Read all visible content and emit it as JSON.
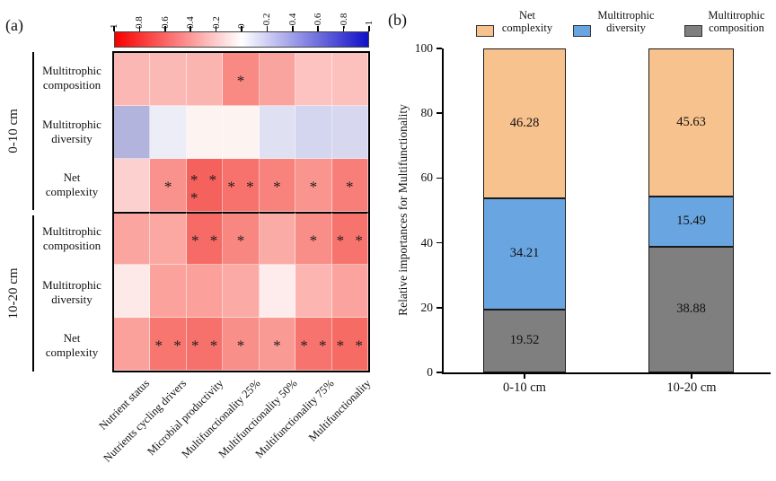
{
  "figure": {
    "panel_a_label": "(a)",
    "panel_b_label": "(b)"
  },
  "panel_a": {
    "row_groups": [
      {
        "label": "0-10 cm",
        "rows": [
          [
            "Multitrophic",
            "composition"
          ],
          [
            "Multitrophic",
            "diversity"
          ],
          [
            "Net",
            "complexity"
          ]
        ]
      },
      {
        "label": "10-20 cm",
        "rows": [
          [
            "Multitrophic",
            "composition"
          ],
          [
            "Multitrophic",
            "diversity"
          ],
          [
            "Net",
            "complexity"
          ]
        ]
      }
    ]
  },
  "panel_b": {
    "ylabel": "Relative importances for Multifunctionality",
    "legend": [
      {
        "label_lines": [
          "Net",
          "complexity"
        ],
        "color": "#f8c28e"
      },
      {
        "label_lines": [
          "Multitrophic",
          "diversity"
        ],
        "color": "#69a6e1"
      },
      {
        "label_lines": [
          "Multitrophic",
          "composition"
        ],
        "color": "#7f7f7f"
      }
    ]
  },
  "chart_data": [
    {
      "type": "heatmap",
      "title": "",
      "rows": [
        "Multitrophic composition (0-10 cm)",
        "Multitrophic diversity (0-10 cm)",
        "Net complexity (0-10 cm)",
        "Multitrophic composition (10-20 cm)",
        "Multitrophic diversity (10-20 cm)",
        "Net complexity (10-20 cm)"
      ],
      "columns": [
        "Nutrient status",
        "Nutrients cycling drivers",
        "Microbial productivity",
        "Multifunctionality 25%",
        "Multifunctionality 50%",
        "Multifunctionality 75%",
        "Multifunctionality"
      ],
      "values_note": "correlation values estimated from red-white-blue color scale",
      "values": [
        [
          0.28,
          0.27,
          0.29,
          0.46,
          0.36,
          0.24,
          0.25
        ],
        [
          -0.3,
          -0.07,
          0.04,
          0.04,
          -0.12,
          -0.17,
          -0.16
        ],
        [
          0.18,
          0.43,
          0.62,
          0.55,
          0.49,
          0.42,
          0.5
        ],
        [
          0.35,
          0.34,
          0.58,
          0.47,
          0.33,
          0.45,
          0.55
        ],
        [
          0.09,
          0.36,
          0.37,
          0.33,
          0.07,
          0.29,
          0.36
        ],
        [
          0.37,
          0.54,
          0.56,
          0.44,
          0.4,
          0.55,
          0.58
        ]
      ],
      "significance": [
        [
          "",
          "",
          "",
          "*",
          "",
          "",
          ""
        ],
        [
          "",
          "",
          "",
          "",
          "",
          "",
          ""
        ],
        [
          "",
          "*",
          "***",
          "**",
          "*",
          "*",
          "*"
        ],
        [
          "",
          "",
          "**",
          "*",
          "",
          "*",
          "**"
        ],
        [
          "",
          "",
          "",
          "",
          "",
          "",
          ""
        ],
        [
          "",
          "**",
          "**",
          "*",
          "*",
          "**",
          "**"
        ]
      ],
      "cell_colors": [
        [
          "#fbb7b4",
          "#fbb9b5",
          "#fab5b1",
          "#f98983",
          "#faa49f",
          "#fcc3c0",
          "#fcc0bd"
        ],
        [
          "#b3b4de",
          "#ededf8",
          "#fdf3f1",
          "#fdf4f2",
          "#dfe0f2",
          "#d4d5ee",
          "#d7d8ef"
        ],
        [
          "#fcd0ce",
          "#f9918c",
          "#f5625d",
          "#f7726d",
          "#f8837d",
          "#f9948f",
          "#f87f79"
        ],
        [
          "#fba5a1",
          "#fba8a3",
          "#f66b66",
          "#f88781",
          "#fbaba6",
          "#f98d88",
          "#f7736e"
        ],
        [
          "#fde9e8",
          "#fba29d",
          "#fba09b",
          "#fbaaa5",
          "#fdeceb",
          "#fcb5b1",
          "#fba39e"
        ],
        [
          "#fba19c",
          "#f7766f",
          "#f7716c",
          "#f98f89",
          "#fa9a94",
          "#f7736d",
          "#f66b64"
        ]
      ],
      "colorbar": {
        "max": 1,
        "min": -1,
        "ticks": [
          "1",
          "0.8",
          "0.6",
          "0.4",
          "0.2",
          "0",
          "-0.2",
          "-0.4",
          "-0.6",
          "-0.8",
          "-1"
        ],
        "left_color": "#f80000",
        "mid_color": "#ffffff",
        "right_color": "#1010c8"
      }
    },
    {
      "type": "bar",
      "stacked": true,
      "categories": [
        "0-10 cm",
        "10-20 cm"
      ],
      "series": [
        {
          "name": "Multitrophic composition",
          "color": "#7f7f7f",
          "values": [
            19.52,
            38.88
          ]
        },
        {
          "name": "Multitrophic diversity",
          "color": "#69a6e1",
          "values": [
            34.21,
            15.49
          ]
        },
        {
          "name": "Net complexity",
          "color": "#f8c28e",
          "values": [
            46.28,
            45.63
          ]
        }
      ],
      "ylabel": "Relative importances for Multifunctionality",
      "ylim": [
        0,
        100
      ],
      "yticks": [
        "0",
        "20",
        "40",
        "60",
        "80",
        "100"
      ],
      "legend_position": "top",
      "grid": false
    }
  ]
}
